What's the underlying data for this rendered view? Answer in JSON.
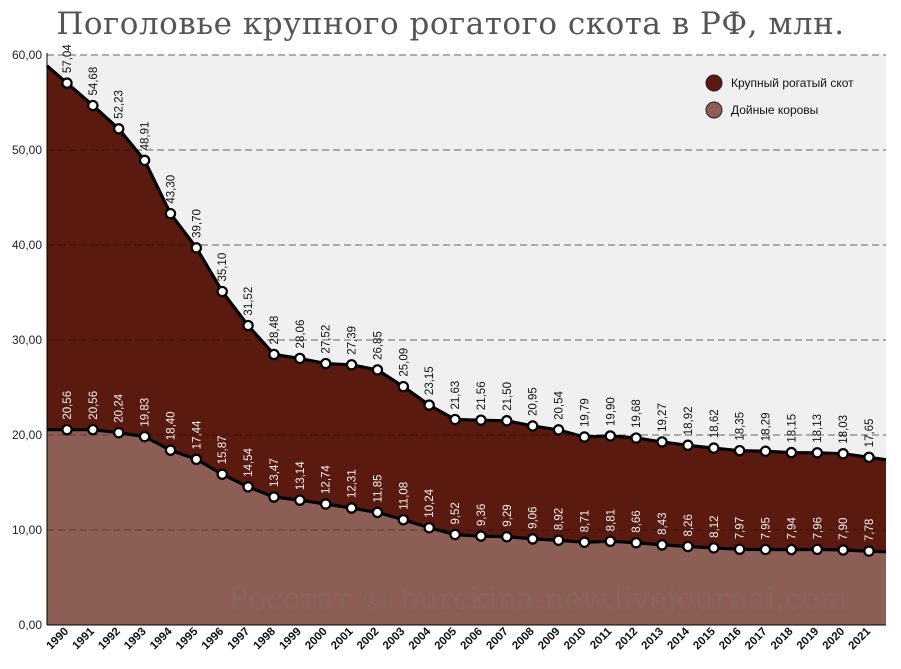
{
  "title": "Поголовье крупного рогатого скота в РФ, млн.",
  "watermark": "Росстат © burckina-new.livejournal.com",
  "chart_data": {
    "type": "area",
    "title": "Поголовье крупного рогатого скота в РФ, млн.",
    "categories": [
      "1990",
      "1991",
      "1992",
      "1993",
      "1994",
      "1995",
      "1996",
      "1997",
      "1998",
      "1999",
      "2000",
      "2001",
      "2002",
      "2003",
      "2004",
      "2005",
      "2006",
      "2007",
      "2008",
      "2009",
      "2010",
      "2011",
      "2012",
      "2013",
      "2014",
      "2015",
      "2016",
      "2017",
      "2018",
      "2019",
      "2020",
      "2021"
    ],
    "series": [
      {
        "name": "Крупный рогатый скот",
        "color": "#5a1a10",
        "values": [
          57.04,
          54.68,
          52.23,
          48.91,
          43.3,
          39.7,
          35.1,
          31.52,
          28.48,
          28.06,
          27.52,
          27.39,
          26.85,
          25.09,
          23.15,
          21.63,
          21.56,
          21.5,
          20.95,
          20.54,
          19.79,
          19.9,
          19.68,
          19.27,
          18.92,
          18.62,
          18.35,
          18.29,
          18.15,
          18.13,
          18.03,
          17.65
        ],
        "labels": [
          "57,04",
          "54,68",
          "52,23",
          "48,91",
          "43,30",
          "39,70",
          "35,10",
          "31,52",
          "28,48",
          "28,06",
          "27,52",
          "27,39",
          "26,85",
          "25,09",
          "23,15",
          "21,63",
          "21,56",
          "21,50",
          "20,95",
          "20,54",
          "19,79",
          "19,90",
          "19,68",
          "19,27",
          "18,92",
          "18,62",
          "18,35",
          "18,29",
          "18,15",
          "18,13",
          "18,03",
          "17,65"
        ]
      },
      {
        "name": "Дойные коровы",
        "color": "#8c5e55",
        "values": [
          20.56,
          20.56,
          20.24,
          19.83,
          18.4,
          17.44,
          15.87,
          14.54,
          13.47,
          13.14,
          12.74,
          12.31,
          11.85,
          11.08,
          10.24,
          9.52,
          9.36,
          9.29,
          9.06,
          8.92,
          8.71,
          8.81,
          8.66,
          8.43,
          8.26,
          8.12,
          7.97,
          7.95,
          7.94,
          7.96,
          7.9,
          7.78
        ],
        "labels": [
          "20,56",
          "20,56",
          "20,24",
          "19,83",
          "18,40",
          "17,44",
          "15,87",
          "14,54",
          "13,47",
          "13,14",
          "12,74",
          "12,31",
          "11,85",
          "11,08",
          "10,24",
          "9,52",
          "9,36",
          "9,29",
          "9,06",
          "8,92",
          "8,71",
          "8,81",
          "8,66",
          "8,43",
          "8,26",
          "8,12",
          "7,97",
          "7,95",
          "7,94",
          "7,96",
          "7,90",
          "7,78"
        ]
      }
    ],
    "ylim": [
      0,
      60
    ],
    "yticks": [
      "0,00",
      "10,00",
      "20,00",
      "30,00",
      "40,00",
      "50,00",
      "60,00"
    ],
    "grid": true,
    "legend_position": "top-right",
    "background": "#f0f0f0"
  }
}
